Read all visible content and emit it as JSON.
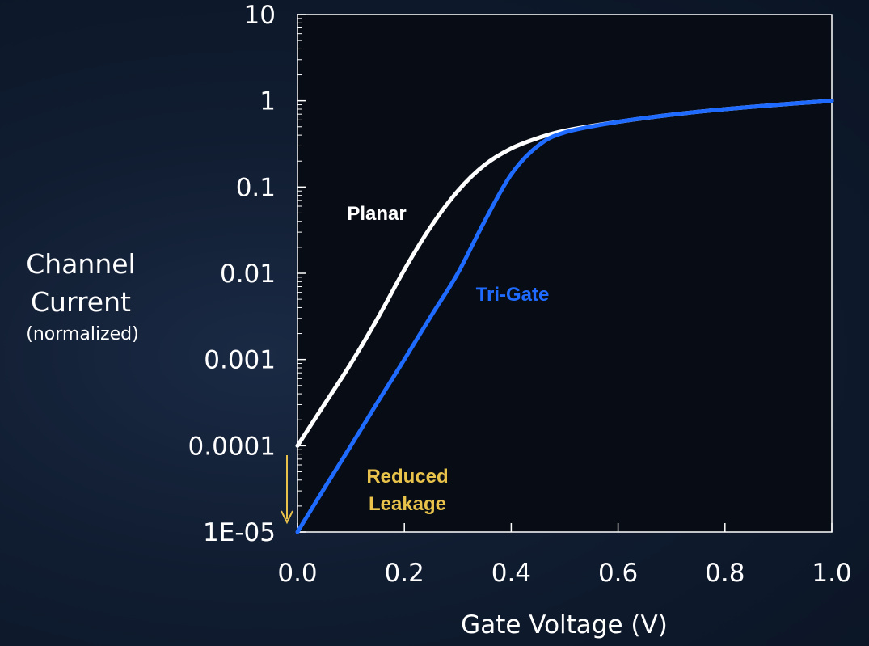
{
  "chart_data": {
    "type": "line",
    "xlabel": "Gate Voltage (V)",
    "ylabel_line1": "Channel",
    "ylabel_line2": "Current",
    "ylabel_line3": "(normalized)",
    "x_ticks": [
      "0.0",
      "0.2",
      "0.4",
      "0.6",
      "0.8",
      "1.0"
    ],
    "y_ticks": [
      "1E-05",
      "0.0001",
      "0.001",
      "0.01",
      "0.1",
      "1",
      "10"
    ],
    "xlim": [
      0,
      1.0
    ],
    "ylim": [
      1e-05,
      10
    ],
    "y_scale": "log",
    "grid": false,
    "series": [
      {
        "name": "Planar",
        "color": "#ffffff",
        "x": [
          0.0,
          0.05,
          0.1,
          0.15,
          0.2,
          0.25,
          0.3,
          0.35,
          0.4,
          0.45,
          0.5,
          0.6,
          0.7,
          0.8,
          0.9,
          1.0
        ],
        "y": [
          0.0001,
          0.0003,
          0.0009,
          0.003,
          0.011,
          0.035,
          0.09,
          0.18,
          0.28,
          0.37,
          0.45,
          0.57,
          0.69,
          0.8,
          0.9,
          1.0
        ]
      },
      {
        "name": "Tri-Gate",
        "color": "#1f6bff",
        "x": [
          0.0,
          0.05,
          0.1,
          0.15,
          0.2,
          0.25,
          0.3,
          0.35,
          0.4,
          0.45,
          0.5,
          0.6,
          0.7,
          0.8,
          0.9,
          1.0
        ],
        "y": [
          1e-05,
          3.2e-05,
          0.0001,
          0.00032,
          0.001,
          0.0032,
          0.01,
          0.04,
          0.14,
          0.3,
          0.43,
          0.57,
          0.69,
          0.8,
          0.9,
          1.0
        ]
      }
    ],
    "annotations": [
      {
        "text_line1": "Reduced",
        "text_line2": "Leakage",
        "color": "#e8c24a"
      }
    ]
  }
}
